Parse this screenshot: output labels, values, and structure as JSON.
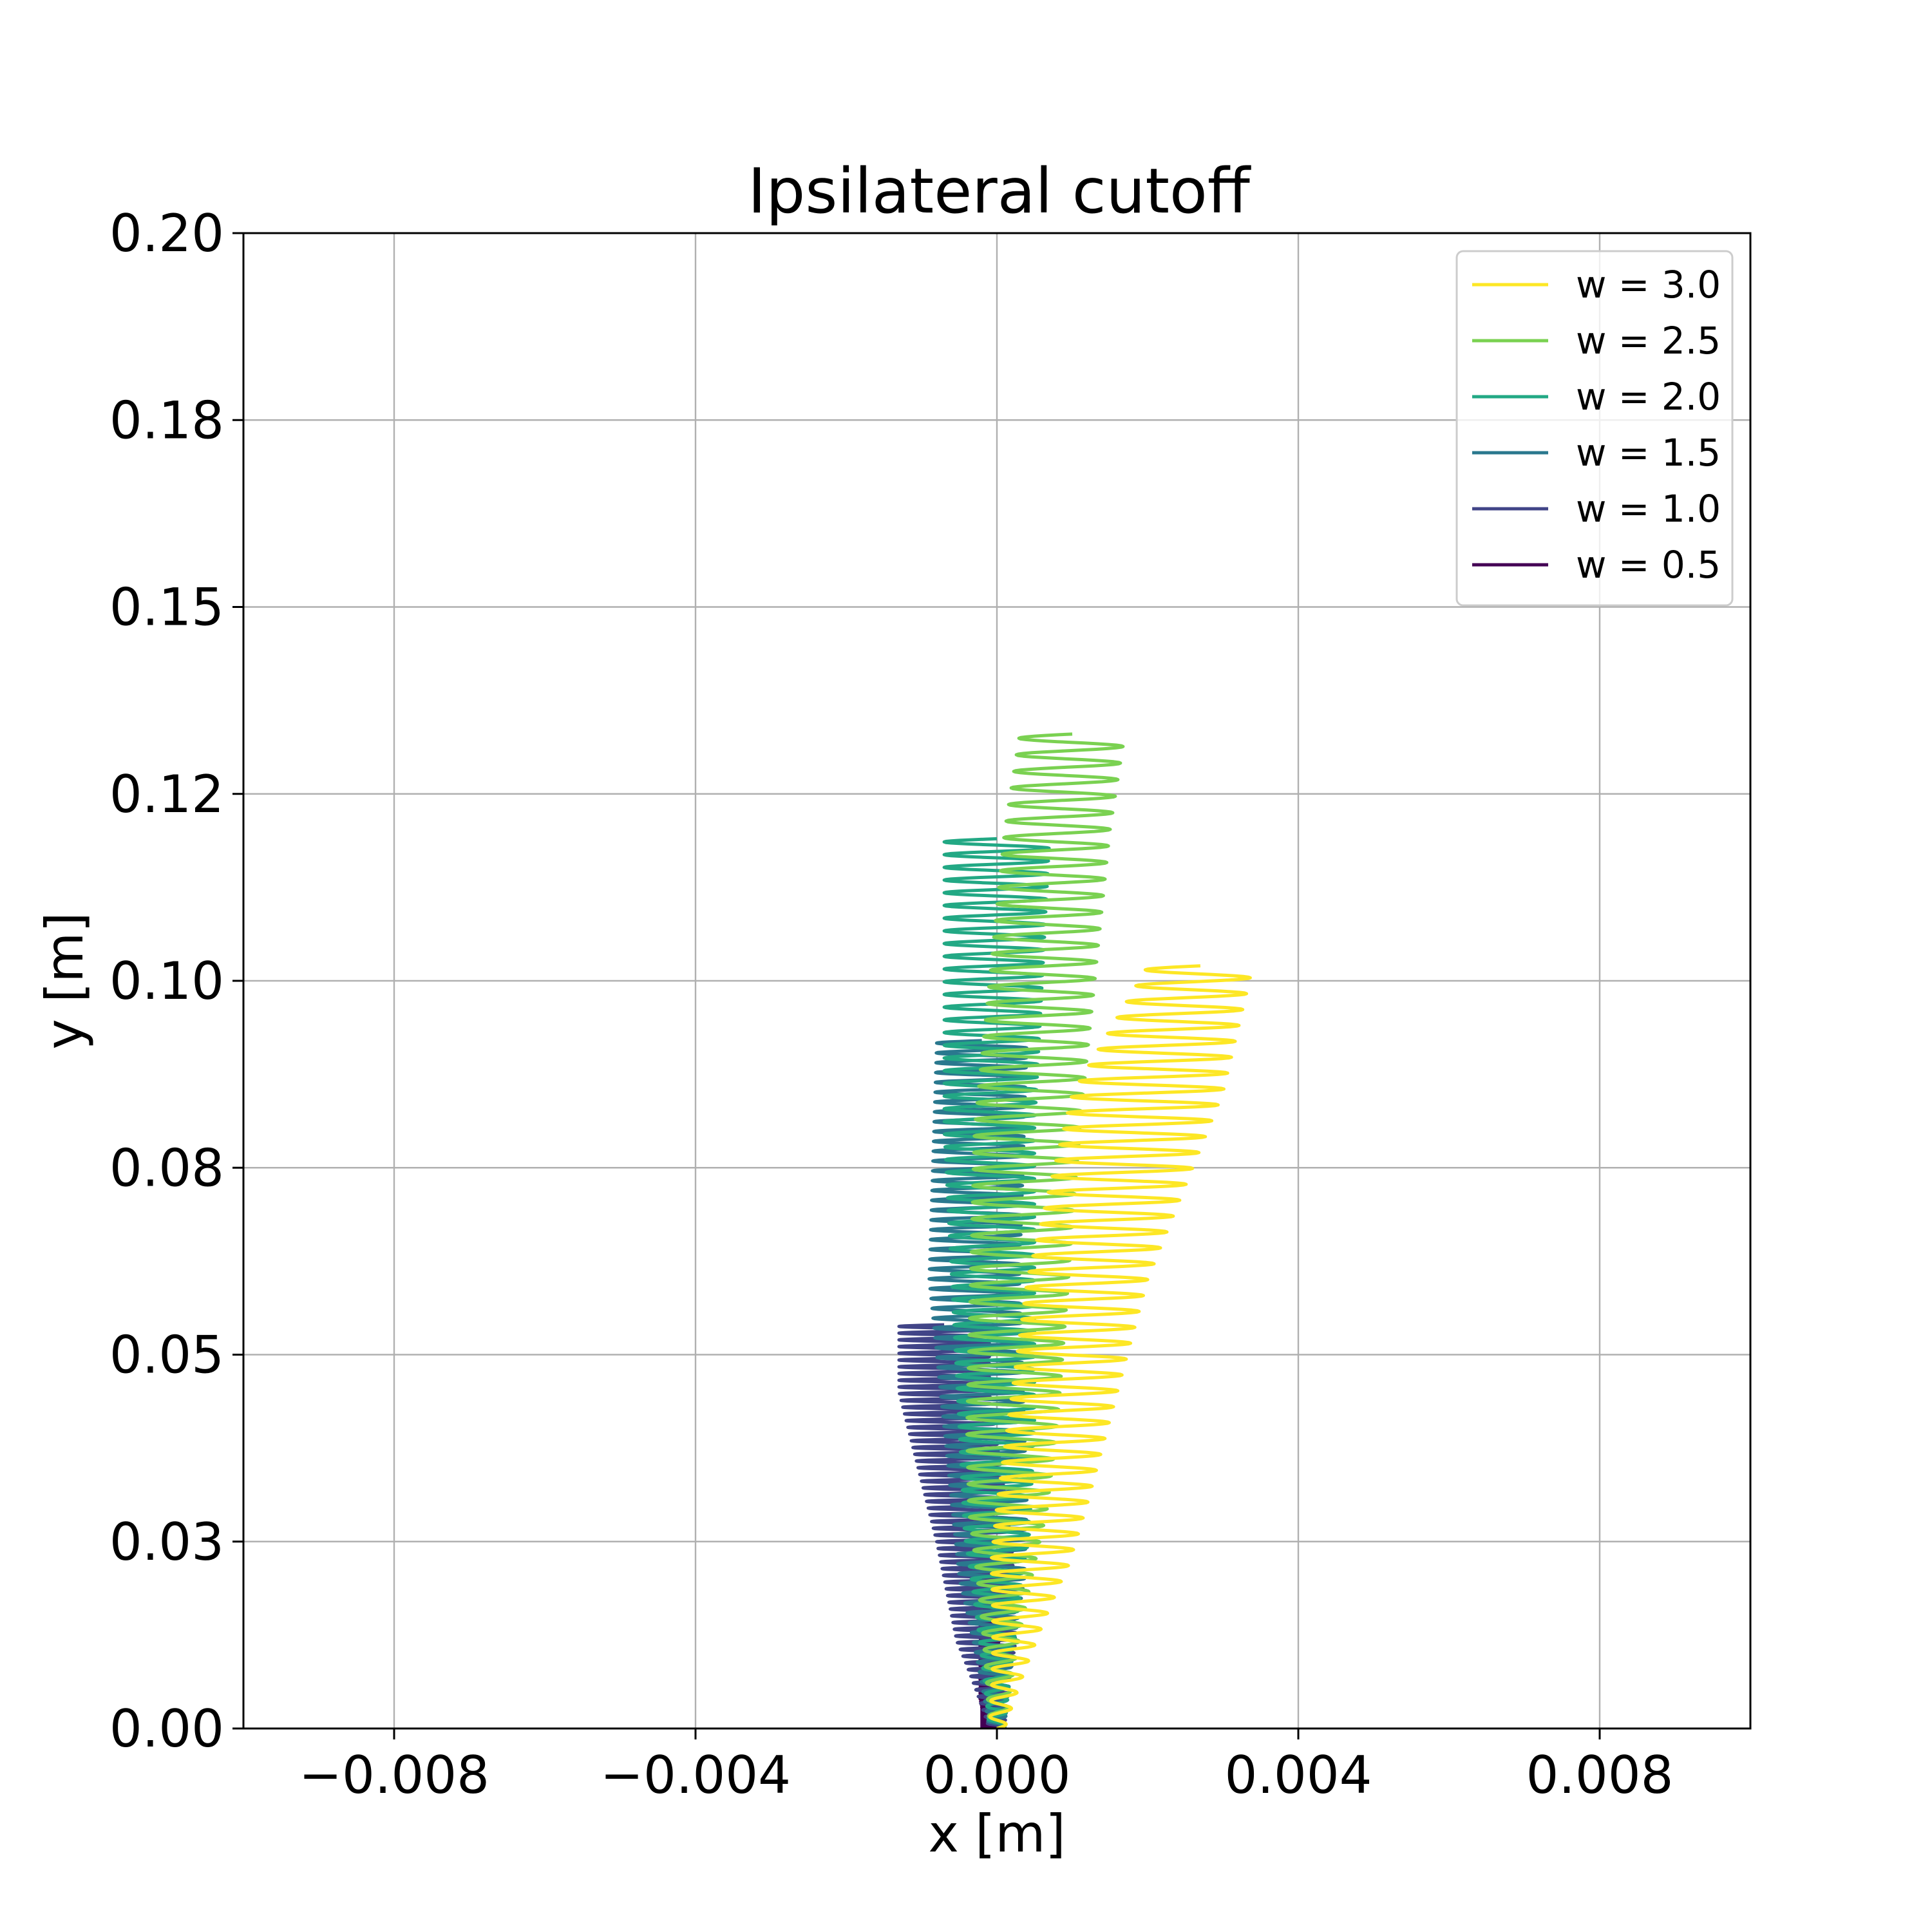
{
  "chart_data": {
    "type": "line",
    "title": "Ipsilateral cutoff",
    "xlabel": "x [m]",
    "ylabel": "y [m]",
    "xlim": [
      -0.01,
      0.01
    ],
    "ylim": [
      0.0,
      0.2
    ],
    "xticks": [
      -0.008,
      -0.004,
      0.0,
      0.004,
      0.008
    ],
    "xtick_labels": [
      "−0.008",
      "−0.004",
      "0.000",
      "0.004",
      "0.008"
    ],
    "yticks": [
      0.0,
      0.025,
      0.05,
      0.075,
      0.1,
      0.125,
      0.15,
      0.175,
      0.2
    ],
    "ytick_labels": [
      "0.00",
      "0.03",
      "0.05",
      "0.08",
      "0.10",
      "0.12",
      "0.15",
      "0.18",
      "0.20"
    ],
    "grid": true,
    "legend_position": "top-right",
    "series": [
      {
        "name": "w = 3.0",
        "color": "#fde725",
        "oscillation": "zigzag",
        "points": [
          [
            0.0,
            0.0
          ],
          [
            0.0006,
            0.03
          ],
          [
            0.0012,
            0.06
          ],
          [
            0.002,
            0.085
          ],
          [
            0.0027,
            0.102
          ]
        ],
        "amplitude_x": [
          0.0003,
          0.0006,
          0.0008,
          0.001,
          0.0007
        ],
        "cycles": 48
      },
      {
        "name": "w = 2.5",
        "color": "#7ad151",
        "oscillation": "zigzag",
        "points": [
          [
            0.0,
            0.0
          ],
          [
            0.0002,
            0.04
          ],
          [
            0.0004,
            0.08
          ],
          [
            0.0008,
            0.12
          ],
          [
            0.001,
            0.133
          ]
        ],
        "amplitude_x": [
          0.0003,
          0.0006,
          0.0007,
          0.0007,
          0.0007
        ],
        "cycles": 60
      },
      {
        "name": "w = 2.0",
        "color": "#22a884",
        "oscillation": "zigzag",
        "points": [
          [
            0.0,
            0.0
          ],
          [
            0.0,
            0.04
          ],
          [
            -0.0001,
            0.08
          ],
          [
            0.0,
            0.119
          ]
        ],
        "amplitude_x": [
          0.0003,
          0.0005,
          0.0006,
          0.0007
        ],
        "cycles": 70
      },
      {
        "name": "w = 1.5",
        "color": "#2a788e",
        "oscillation": "zigzag",
        "points": [
          [
            0.0,
            0.0
          ],
          [
            -0.0001,
            0.03
          ],
          [
            -0.0003,
            0.06
          ],
          [
            -0.0002,
            0.092
          ]
        ],
        "amplitude_x": [
          0.0003,
          0.0005,
          0.0006,
          0.0006
        ],
        "cycles": 70
      },
      {
        "name": "w = 1.0",
        "color": "#414487",
        "oscillation": "zigzag",
        "points": [
          [
            0.0,
            0.0
          ],
          [
            -0.0003,
            0.025
          ],
          [
            -0.0007,
            0.045
          ],
          [
            -0.0007,
            0.054
          ]
        ],
        "amplitude_x": [
          0.0003,
          0.0005,
          0.0006,
          0.0006
        ],
        "cycles": 60
      },
      {
        "name": "w = 0.5",
        "color": "#440154",
        "oscillation": "dense",
        "points": [
          [
            -0.0001,
            0.0
          ],
          [
            -0.0001,
            0.0185
          ]
        ],
        "amplitude_x": [
          0.00012,
          0.00012
        ],
        "cycles": 50
      }
    ]
  }
}
